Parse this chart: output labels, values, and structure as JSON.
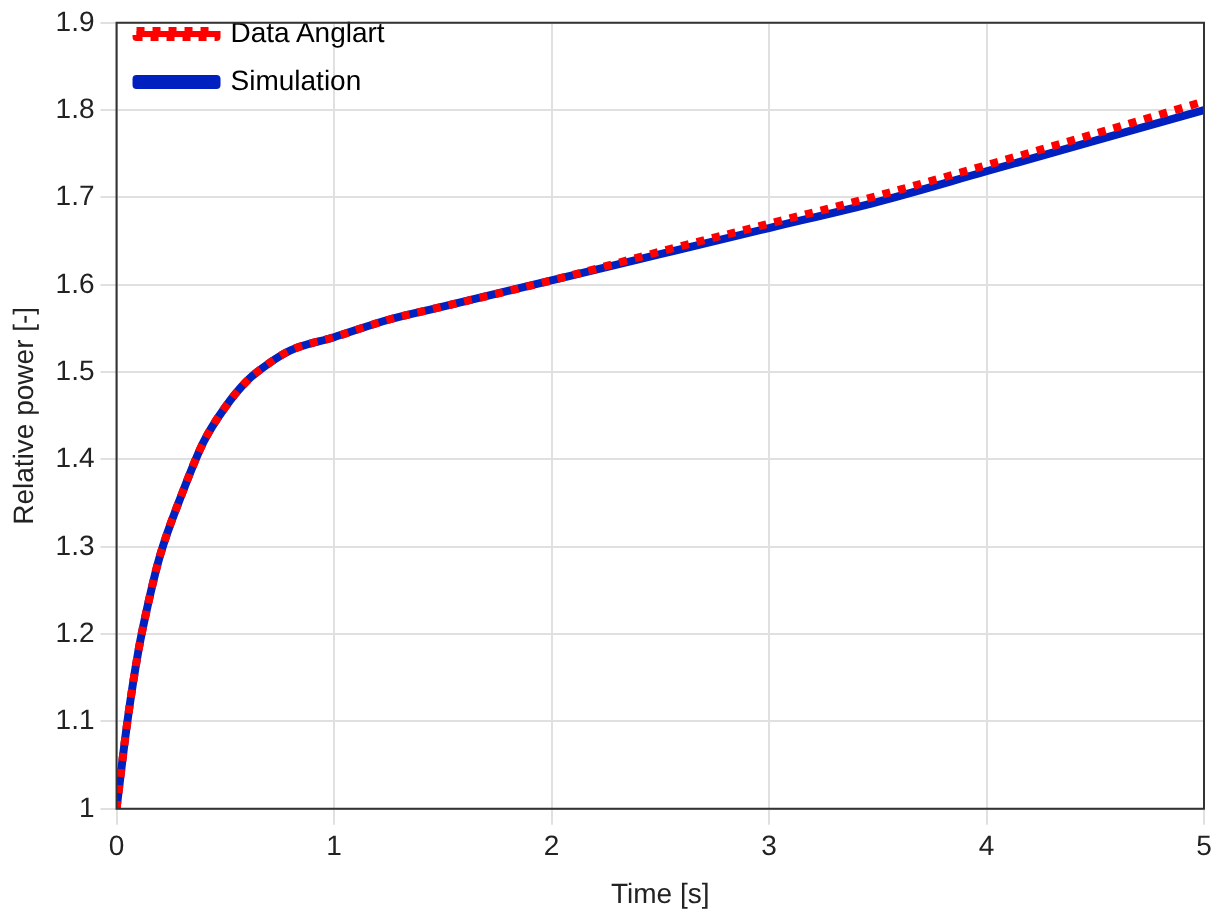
{
  "chart_data": {
    "type": "line",
    "xlabel": "Time [s]",
    "ylabel": "Relative power [-]",
    "xlim": [
      0,
      5
    ],
    "xticks": [
      0,
      1,
      2,
      3,
      4,
      5
    ],
    "ylim": [
      1,
      1.9
    ],
    "yticks": [
      1,
      1.1,
      1.2,
      1.3,
      1.4,
      1.5,
      1.6,
      1.7,
      1.8,
      1.9
    ],
    "grid": true,
    "legend": "top left",
    "marker": "none",
    "series": [
      {
        "name": "Data Anglart",
        "color": "#ff0000",
        "line_style": "dotted",
        "x": [
          0,
          0.05,
          0.1,
          0.15,
          0.2,
          0.3,
          0.4,
          0.5,
          0.6,
          0.7,
          0.8,
          1,
          1.25,
          1.5,
          2,
          2.5,
          3,
          3.5,
          4,
          4.5,
          5
        ],
        "values": [
          1,
          1.1,
          1.18,
          1.24,
          1.29,
          1.36,
          1.42,
          1.46,
          1.49,
          1.51,
          1.525,
          1.54,
          1.56,
          1.575,
          1.605,
          1.638,
          1.67,
          1.702,
          1.737,
          1.773,
          1.81
        ]
      },
      {
        "name": "Simulation",
        "color": "#0020c0",
        "line_style": "solid",
        "x": [
          0,
          0.05,
          0.1,
          0.15,
          0.2,
          0.3,
          0.4,
          0.5,
          0.6,
          0.7,
          0.8,
          1,
          1.25,
          1.5,
          2,
          2.5,
          3,
          3.5,
          4,
          4.5,
          5
        ],
        "values": [
          1,
          1.1,
          1.18,
          1.24,
          1.29,
          1.36,
          1.42,
          1.46,
          1.49,
          1.51,
          1.525,
          1.54,
          1.56,
          1.575,
          1.605,
          1.635,
          1.665,
          1.695,
          1.73,
          1.765,
          1.8
        ]
      }
    ]
  }
}
